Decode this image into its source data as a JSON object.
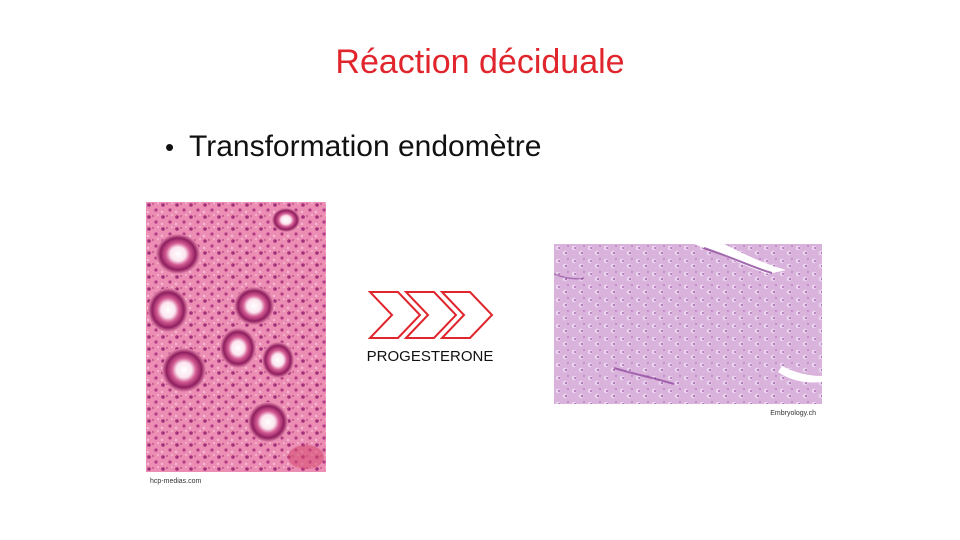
{
  "slide": {
    "title": "Réaction déciduale",
    "bullets": [
      "Transformation endomètre"
    ],
    "arrow_label": "PROGESTERONE",
    "left_image": {
      "credit": "hcp-medias.com"
    },
    "right_image": {
      "credit": "Embryology.ch"
    }
  },
  "colors": {
    "title": "#e0262c",
    "arrow": "#e0262c",
    "left_tissue": "#e87aa4",
    "right_tissue": "#d6a8d8"
  },
  "icons": {
    "arrow": "triple-chevron-right-icon"
  }
}
